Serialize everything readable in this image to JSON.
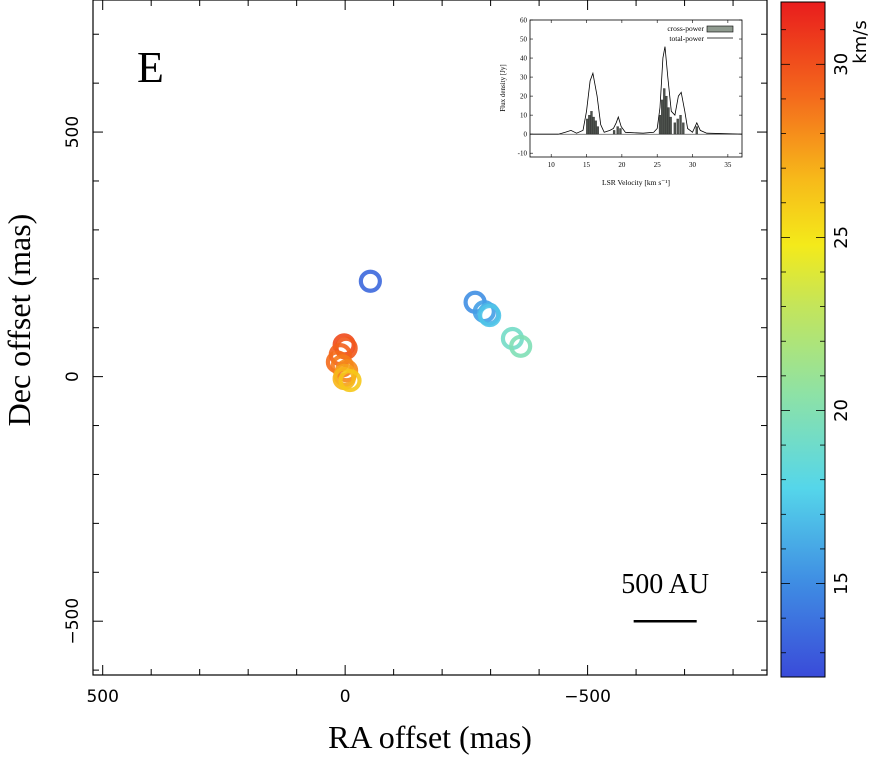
{
  "chart_data": {
    "type": "scatter",
    "panel_label": "E",
    "xlabel": "RA offset (mas)",
    "ylabel": "Dec offset (mas)",
    "xlim": [
      520,
      -870
    ],
    "ylim": [
      -610,
      770
    ],
    "xticks": [
      500,
      0,
      -500
    ],
    "xtick_labels": [
      "500",
      "0",
      "−500"
    ],
    "yticks": [
      500,
      0,
      -500
    ],
    "ytick_labels": [
      "500",
      "0",
      "−500"
    ],
    "scale_bar": {
      "label": "500 AU",
      "x_from": -595,
      "x_to": -725,
      "y": -500
    },
    "colorbar": {
      "label": "km/s",
      "vmin": 12.3,
      "vmax": 31.8,
      "ticks": [
        15,
        20,
        25,
        30
      ],
      "tick_labels": [
        "15",
        "20",
        "25",
        "30"
      ]
    },
    "spots": [
      {
        "x": -52,
        "y": 195,
        "v": 13.5
      },
      {
        "x": -268,
        "y": 152,
        "v": 15.1
      },
      {
        "x": -287,
        "y": 133,
        "v": 15.7
      },
      {
        "x": -296,
        "y": 128,
        "v": 16.5
      },
      {
        "x": -298,
        "y": 125,
        "v": 17.1
      },
      {
        "x": -345,
        "y": 78,
        "v": 19.2
      },
      {
        "x": -362,
        "y": 62,
        "v": 19.8
      },
      {
        "x": 2,
        "y": 65,
        "v": 30.2
      },
      {
        "x": -2,
        "y": 58,
        "v": 29.7
      },
      {
        "x": 10,
        "y": 45,
        "v": 29.4
      },
      {
        "x": 16,
        "y": 30,
        "v": 29.0
      },
      {
        "x": 6,
        "y": 22,
        "v": 28.6
      },
      {
        "x": -3,
        "y": 12,
        "v": 28.1
      },
      {
        "x": 0,
        "y": 3,
        "v": 27.4
      },
      {
        "x": 2,
        "y": -4,
        "v": 26.8
      },
      {
        "x": -10,
        "y": -8,
        "v": 26.1
      }
    ],
    "inset": {
      "xlabel": "LSR Velocity [km s⁻¹]",
      "ylabel": "Flux density [Jy]",
      "xlim": [
        7,
        37
      ],
      "ylim": [
        -12,
        60
      ],
      "xticks": [
        10,
        15,
        20,
        25,
        30,
        35
      ],
      "yticks": [
        -10,
        0,
        10,
        20,
        30,
        40,
        50,
        60
      ],
      "legend": [
        "cross-power",
        "total-power"
      ],
      "total_power": [
        [
          7,
          0
        ],
        [
          11,
          0
        ],
        [
          12,
          1
        ],
        [
          12.8,
          2
        ],
        [
          13.6,
          0.5
        ],
        [
          14.5,
          2
        ],
        [
          15,
          12
        ],
        [
          15.5,
          28
        ],
        [
          15.9,
          32
        ],
        [
          16.5,
          20
        ],
        [
          17,
          5
        ],
        [
          17.5,
          1
        ],
        [
          18.3,
          2
        ],
        [
          18.8,
          3
        ],
        [
          19.2,
          6
        ],
        [
          19.5,
          9
        ],
        [
          19.9,
          4
        ],
        [
          20.5,
          1
        ],
        [
          23,
          0.5
        ],
        [
          24.5,
          1
        ],
        [
          25,
          3
        ],
        [
          25.4,
          14
        ],
        [
          25.8,
          40
        ],
        [
          26.1,
          46
        ],
        [
          26.5,
          30
        ],
        [
          27,
          12
        ],
        [
          27.5,
          10
        ],
        [
          28,
          20
        ],
        [
          28.4,
          22
        ],
        [
          28.9,
          12
        ],
        [
          29.3,
          3
        ],
        [
          30,
          1
        ],
        [
          30.6,
          6
        ],
        [
          31.1,
          2
        ],
        [
          32,
          0.5
        ],
        [
          37,
          0
        ]
      ],
      "cross_power": [
        [
          15.1,
          8
        ],
        [
          15.4,
          10
        ],
        [
          15.7,
          12
        ],
        [
          16.0,
          9
        ],
        [
          16.3,
          7
        ],
        [
          16.6,
          4
        ],
        [
          18.9,
          2
        ],
        [
          19.4,
          4
        ],
        [
          19.8,
          3
        ],
        [
          25.4,
          10
        ],
        [
          25.7,
          18
        ],
        [
          26.0,
          24
        ],
        [
          26.3,
          20
        ],
        [
          26.6,
          14
        ],
        [
          26.9,
          9
        ],
        [
          27.5,
          6
        ],
        [
          27.9,
          8
        ],
        [
          28.3,
          10
        ],
        [
          28.7,
          6
        ],
        [
          30.6,
          4
        ]
      ]
    }
  }
}
